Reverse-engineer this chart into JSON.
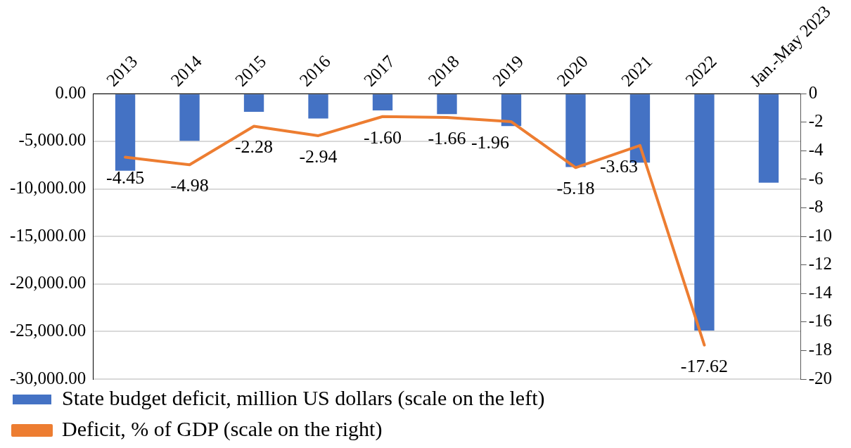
{
  "chart_data": {
    "type": "bar",
    "categories": [
      "2013",
      "2014",
      "2015",
      "2016",
      "2017",
      "2018",
      "2019",
      "2020",
      "2021",
      "2022",
      "Jan.-May 2023"
    ],
    "series": [
      {
        "name": "State budget deficit, million US dollars (scale on the left)",
        "color": "#4472c4",
        "values": [
          -8100,
          -4950,
          -1900,
          -2600,
          -1750,
          -2150,
          -3400,
          -7700,
          -7250,
          -24900,
          -9350
        ]
      },
      {
        "name": "Deficit, % of GDP (scale on the right)",
        "type": "line",
        "axis": "y2",
        "color": "#ed7d31",
        "values": [
          -4.45,
          -4.98,
          -2.28,
          -2.94,
          -1.6,
          -1.66,
          -1.96,
          -5.18,
          -3.63,
          -17.62,
          null
        ],
        "value_labels": [
          "-4.45",
          "-4.98",
          "-2.28",
          "-2.94",
          "-1.60",
          "-1.66",
          "-1.96",
          "-5.18",
          "-3.63",
          "-17.62",
          null
        ]
      }
    ],
    "ylim": [
      -30000,
      0
    ],
    "yticks": [
      {
        "value": 0,
        "label": "0.00"
      },
      {
        "value": -5000,
        "label": "-5,000.00"
      },
      {
        "value": -10000,
        "label": "-10,000.00"
      },
      {
        "value": -15000,
        "label": "-15,000.00"
      },
      {
        "value": -20000,
        "label": "-20,000.00"
      },
      {
        "value": -25000,
        "label": "-25,000.00"
      },
      {
        "value": -30000,
        "label": "-30,000.00"
      }
    ],
    "y2lim": [
      -20,
      0
    ],
    "y2ticks": [
      0,
      -2,
      -4,
      -6,
      -8,
      -10,
      -12,
      -14,
      -16,
      -18,
      -20
    ],
    "grid": "y",
    "legend": "bottom",
    "marker": "none",
    "line_style": "solid"
  }
}
